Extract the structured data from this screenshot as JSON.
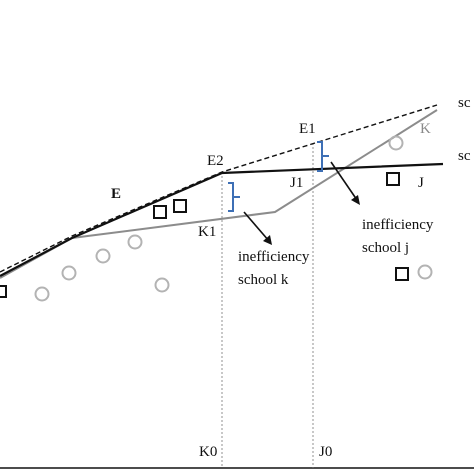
{
  "labels": {
    "frontier_E": "E",
    "frontier_J": "J",
    "frontier_K": "K",
    "right_label_top": "sc",
    "right_label_mid": "sc",
    "point_E1": "E1",
    "point_E2": "E2",
    "point_J1": "J1",
    "point_K1": "K1",
    "axis_K0": "K0",
    "axis_J0": "J0"
  },
  "annotations": {
    "school_k": {
      "line1": "inefficiency",
      "line2": "school k"
    },
    "school_j": {
      "line1": "inefficiency",
      "line2": "school j"
    }
  },
  "colors": {
    "frontier_black": "#111111",
    "frontier_grey": "#8c8c8c",
    "bracket_blue": "#3d6fb5",
    "circle_grey": "#b3b3b3"
  },
  "markers": {
    "square": "square-marker",
    "circle": "circle-marker"
  }
}
